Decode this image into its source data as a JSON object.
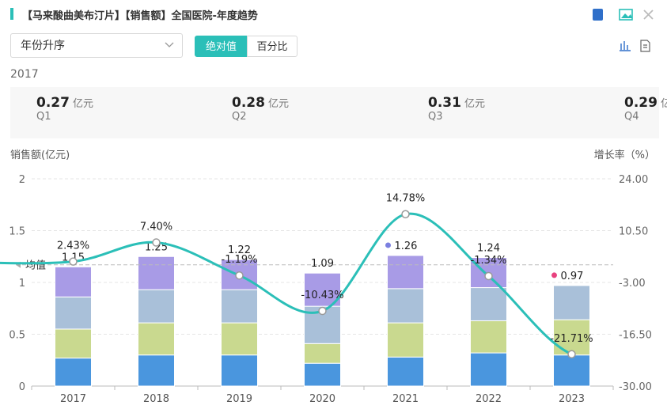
{
  "header": {
    "title": "【马来酸曲美布汀片】【销售额】全国医院-年度趋势"
  },
  "controls": {
    "sort": "年份升序",
    "toggle": [
      "绝对值",
      "百分比"
    ]
  },
  "summary": {
    "year": "2017",
    "cards": [
      {
        "value": 0.27,
        "unit": "亿元",
        "label": "Q1"
      },
      {
        "value": 0.28,
        "unit": "亿元",
        "label": "Q2"
      },
      {
        "value": 0.31,
        "unit": "亿元",
        "label": "Q3"
      },
      {
        "value": 0.29,
        "unit": "亿元",
        "label": "Q4"
      }
    ]
  },
  "chart_data": {
    "type": "bar",
    "y_label": "销售额(亿元)",
    "y2_label": "增长率（%）",
    "categories": [
      "2017",
      "2018",
      "2019",
      "2020",
      "2021",
      "2022",
      "2023"
    ],
    "series": [
      {
        "type": "bar",
        "color": "#4a96de",
        "values": [
          0.27,
          0.3,
          0.3,
          0.22,
          0.28,
          0.32,
          0.3
        ]
      },
      {
        "type": "bar",
        "color": "#c9d98f",
        "values": [
          0.28,
          0.31,
          0.31,
          0.19,
          0.33,
          0.31,
          0.34
        ]
      },
      {
        "type": "bar",
        "color": "#a9c0d9",
        "values": [
          0.31,
          0.32,
          0.32,
          0.36,
          0.33,
          0.32,
          0.33
        ]
      },
      {
        "type": "bar",
        "color": "#a89be6",
        "values": [
          0.29,
          0.32,
          0.29,
          0.32,
          0.32,
          0.29,
          null
        ]
      },
      {
        "type": "line",
        "axis": "y2",
        "color": "#2bbfb8",
        "values": [
          2.43,
          7.4,
          -1.19,
          -10.43,
          14.78,
          -1.34,
          -21.71
        ],
        "value_labels": [
          "2.43%",
          "7.40%",
          "-1.19%",
          "-10.43%",
          "14.78%",
          "-1.34%",
          "-21.71%"
        ]
      }
    ],
    "totals": [
      1.15,
      1.25,
      1.22,
      1.09,
      1.26,
      1.24,
      0.97
    ],
    "highlights": [
      {
        "index": 4,
        "color": "#7b7fe0"
      },
      {
        "index": 6,
        "color": "#e8427f"
      }
    ],
    "average": {
      "label": "均值",
      "value": 1.17
    },
    "ylim": [
      0,
      2
    ],
    "yticks": [
      0,
      0.5,
      1,
      1.5,
      2
    ],
    "y2lim": [
      -30,
      24
    ],
    "y2ticks": [
      {
        "value": -30,
        "label": "-30.00"
      },
      {
        "value": -16.5,
        "label": "-16.50"
      },
      {
        "value": -3,
        "label": "-3.00"
      },
      {
        "value": 10.5,
        "label": "10.50"
      },
      {
        "value": 24,
        "label": "24.00"
      }
    ],
    "grid": true
  }
}
